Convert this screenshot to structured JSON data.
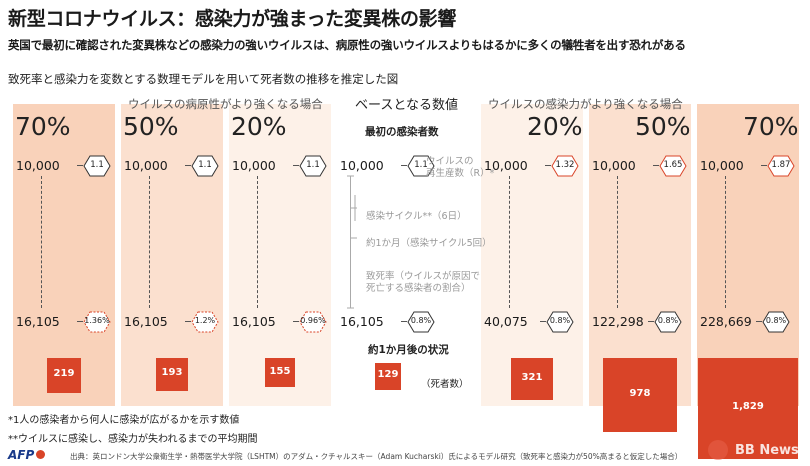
{
  "header": {
    "title": "新型コロナウイルス：感染力が強まった変異株の影響",
    "subtitle": "英国で最初に確認された変異株などの感染力の強いウイルスは、病原性の強いウイルスよりもはるかに多くの犠牲者を出す恐れがある",
    "caption": "致死率と感染力を変数とする数理モデルを用いて死者数の推移を推定した図"
  },
  "groups": {
    "left": "ウイルスの病原性がより強くなる場合",
    "center": "ベースとなる数値",
    "right": "ウイルスの感染力がより強くなる場合"
  },
  "center_labels": {
    "initial_cases": "最初の感染者数",
    "r_label": "ウイルスの\n再生産数（R）*",
    "cycle_label": "感染サイクル**（6日）",
    "month_label": "約1か月（感染サイクル5回）",
    "fatality_label": "致死率（ウイルスが原因で\n死亡する感染者の割合）",
    "after_month": "約1か月後の状況",
    "deaths_label": "（死者数）"
  },
  "footnotes": {
    "note1": "*1人の感染者から何人に感染が広がるかを示す数値",
    "note2": "**ウイルスに感染し、感染力が失われるまでの平均期間",
    "source": "出典：英ロンドン大学公衆衛生学・熱帯医学大学院（LSHTM）のアダム・クチャルスキー（Adam Kucharski）氏によるモデル研究（致死率と感染力が50%高まると仮定した場合）",
    "afp": "AFP",
    "watermark": "BB News"
  },
  "colors": {
    "bar": "#d94428",
    "panel_light": "#fdf1e8",
    "panel_mid": "#fbe0cf",
    "panel_dark": "#f9d2ba",
    "hex_red": "#d94428",
    "hex_dark": "#333333"
  },
  "chart_data": {
    "type": "bar",
    "categories": [
      "70%",
      "50%",
      "20%",
      "ベース",
      "20%",
      "50%",
      "70%"
    ],
    "increase_labels": [
      "70%",
      "50%",
      "20%",
      "",
      "20%",
      "50%",
      "70%"
    ],
    "initial_cases": [
      "10,000",
      "10,000",
      "10,000",
      "10,000",
      "10,000",
      "10,000",
      "10,000"
    ],
    "r_values": [
      "1.1",
      "1.1",
      "1.1",
      "1.1",
      "1.32",
      "1.65",
      "1.87"
    ],
    "cases_after": [
      "16,105",
      "16,105",
      "16,105",
      "16,105",
      "40,075",
      "122,298",
      "228,669"
    ],
    "fatality": [
      "1.36%",
      "1.2%",
      "0.96%",
      "0.8%",
      "0.8%",
      "0.8%",
      "0.8%"
    ],
    "deaths": [
      219,
      193,
      155,
      129,
      321,
      978,
      1829
    ],
    "death_labels": [
      "219",
      "193",
      "155",
      "129",
      "321",
      "978",
      "1,829"
    ]
  }
}
